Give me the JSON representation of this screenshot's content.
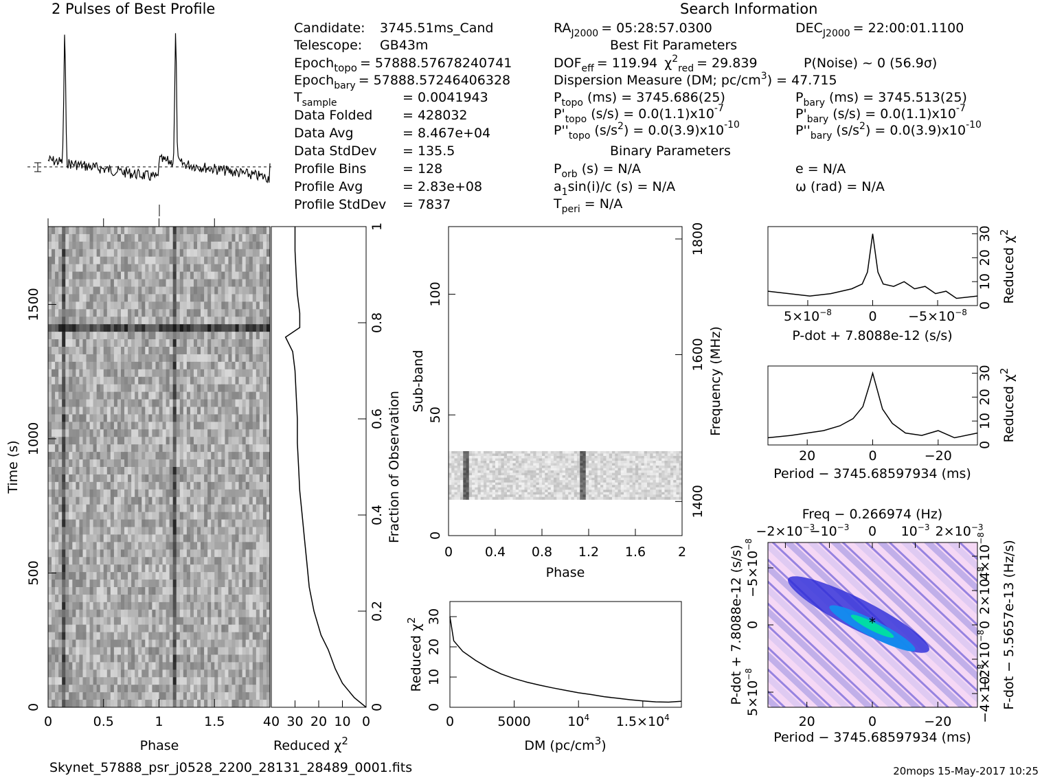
{
  "header": {
    "profile_title": "2 Pulses of Best Profile",
    "search_title": "Search Information",
    "filename": "Skynet_57888_psr_j0528_2200_28131_28489_0001.fits",
    "footer_right": "20mops 15-May-2017 10:25"
  },
  "info_left": {
    "candidate_label": "Candidate:",
    "candidate": "3745.51ms_Cand",
    "telescope_label": "Telescope:",
    "telescope": "GB43m",
    "epoch_topo_label": "Epoch",
    "epoch_topo_sub": "topo",
    "epoch_topo": "= 57888.57678240741",
    "epoch_bary_label": "Epoch",
    "epoch_bary_sub": "bary",
    "epoch_bary": "= 57888.57246406328",
    "tsample_label": "T",
    "tsample_sub": "sample",
    "tsample": "=   0.0041943",
    "data_folded_label": "Data Folded",
    "data_folded": "=   428032",
    "data_avg_label": "Data Avg",
    "data_avg": "=   8.467e+04",
    "data_std_label": "Data StdDev",
    "data_std": "=   135.5",
    "profile_bins_label": "Profile Bins",
    "profile_bins": "=   128",
    "profile_avg_label": "Profile Avg",
    "profile_avg": "=   2.83e+08",
    "profile_std_label": "Profile StdDev",
    "profile_std": "=   7837"
  },
  "info_mid": {
    "ra": "RA",
    "ra_sub": "J2000",
    "ra_val": "= 05:28:57.0300",
    "best_fit_title": "Best Fit Parameters",
    "dof": "DOF",
    "dof_sub": "eff",
    "dof_val": "= 119.94",
    "chi": "χ",
    "chi_sup": "2",
    "chi_sub": "red",
    "chi_val": "= 29.839",
    "pnoise": "P(Noise) ~ 0    (56.9σ)",
    "dm_text": "Dispersion Measure (DM; pc/cm",
    "dm_sup": "3",
    "dm_val": ") = 47.715",
    "ptopo": "P",
    "ptopo_sub": "topo",
    "ptopo_val": "(ms) =  3745.686(25)",
    "pdtopo": "P'",
    "pdtopo_sub": "topo",
    "pdtopo_val": "(s/s) = 0.0(1.1)x10",
    "pdtopo_exp": "-7",
    "pddtopo": "P''",
    "pddtopo_sub": "topo",
    "pddtopo_val": "(s/s",
    "pddtopo_val2": ") = 0.0(3.9)x10",
    "pddtopo_exp": "-10",
    "binary_title": "Binary Parameters",
    "porb": "P",
    "porb_sub": "orb",
    "porb_val": "(s) = N/A",
    "a1": "a",
    "a1_sub": "1",
    "a1_val": "sin(i)/c (s) = N/A",
    "tperi": "T",
    "tperi_sub": "peri",
    "tperi_val": "= N/A"
  },
  "info_right": {
    "dec": "DEC",
    "dec_sub": "J2000",
    "dec_val": "= 22:00:01.1100",
    "pbary": "P",
    "pbary_sub": "bary",
    "pbary_val": "(ms) =  3745.513(25)",
    "pdbary": "P'",
    "pdbary_sub": "bary",
    "pdbary_val": "(s/s) = 0.0(1.1)x10",
    "pdbary_exp": "-7",
    "pddbary": "P''",
    "pddbary_sub": "bary",
    "pddbary_val": "(s/s",
    "pddbary_val2": ") = 0.0(3.9)x10",
    "pddbary_exp": "-10",
    "e": "e = N/A",
    "omega": "ω (rad) = N/A"
  },
  "colors": {
    "ink": "#000000",
    "grid_dark": "#333333",
    "pp_low": "#f5d8f5",
    "pp_mid": "#2b2bd8",
    "pp_high": "#00e0a0"
  },
  "chart_data": [
    {
      "type": "line",
      "name": "profile",
      "title": "2 Pulses of Best Profile",
      "x_range": [
        0,
        2
      ],
      "peaks": [
        0.15,
        1.15
      ],
      "baseline": "dashed",
      "errorbar": true
    },
    {
      "type": "heatmap",
      "name": "time_phase",
      "xlabel": "Phase",
      "ylabel": "Time (s)",
      "xlim": [
        0,
        2
      ],
      "ylim": [
        0,
        1790
      ],
      "xticks": [
        "0",
        "0.5",
        "1",
        "1.5"
      ],
      "yticks": [
        "0",
        "500",
        "1000",
        "1500"
      ],
      "bright_band_time": 1410,
      "pulse_phases": [
        0.15,
        1.15
      ]
    },
    {
      "type": "line",
      "name": "reduced_chi2_vs_fraction",
      "xlabel": "Reduced χ",
      "xlabel_sup": "2",
      "ylabel": "Fraction of Observation",
      "xlim": [
        40,
        0
      ],
      "ylim": [
        0,
        1
      ],
      "xticks": [
        "40",
        "30",
        "20",
        "10",
        "0"
      ],
      "yticks": [
        "0",
        "0.2",
        "0.4",
        "0.6",
        "0.8",
        "1"
      ],
      "fraction": [
        0.0,
        0.02,
        0.05,
        0.08,
        0.12,
        0.15,
        0.2,
        0.25,
        0.3,
        0.35,
        0.4,
        0.45,
        0.5,
        0.55,
        0.6,
        0.65,
        0.7,
        0.74,
        0.77,
        0.79,
        0.82,
        0.86,
        0.9,
        0.95,
        1.0
      ],
      "chi2": [
        0,
        5,
        10,
        13,
        16,
        19,
        22,
        24,
        25,
        26,
        27,
        28,
        28.5,
        29,
        29,
        29.5,
        30,
        31,
        34,
        28,
        28,
        29,
        29.5,
        30,
        30
      ]
    },
    {
      "type": "heatmap",
      "name": "subband_phase",
      "xlabel": "Phase",
      "ylabel": "Sub-band",
      "ylabel2": "Frequency (MHz)",
      "xlim": [
        0,
        2
      ],
      "ylim": [
        0,
        128
      ],
      "xticks": [
        "0",
        "0.4",
        "0.8",
        "1.2",
        "1.6",
        "2"
      ],
      "yticks": [
        "0",
        "50",
        "100"
      ],
      "freq_ticks": [
        "1400",
        "1600",
        "1800"
      ],
      "active_subbands": [
        15,
        35
      ],
      "pulse_phases": [
        0.15,
        1.15
      ]
    },
    {
      "type": "line",
      "name": "dm_curve",
      "xlabel": "DM (pc/cm",
      "xlabel_sup": "3",
      "xlabel_end": ")",
      "ylabel": "Reduced χ",
      "ylabel_sup": "2",
      "xlim": [
        0,
        18000
      ],
      "ylim": [
        0,
        35
      ],
      "xticks": [
        "0",
        "5000",
        "10",
        "1.5×10"
      ],
      "xtick_sup": [
        "",
        "",
        "4",
        "4"
      ],
      "yticks": [
        "0",
        "10",
        "20",
        "30"
      ],
      "x": [
        0,
        300,
        1000,
        2000,
        3000,
        4000,
        5000,
        6000,
        7000,
        8000,
        9000,
        10000,
        11000,
        12000,
        13000,
        14000,
        15000,
        16000,
        17000,
        18000
      ],
      "y": [
        30,
        22,
        18.5,
        15.5,
        13,
        11,
        9.5,
        8.3,
        7.3,
        6.4,
        5.6,
        4.8,
        4.2,
        3.5,
        3.0,
        2.5,
        2.1,
        1.8,
        1.7,
        2.0
      ]
    },
    {
      "type": "line",
      "name": "pdot_curve",
      "xlabel": "P-dot + 7.8088e-12 (s/s)",
      "ylabel": "Reduced χ",
      "ylabel_sup": "2",
      "xticks": [
        "5×10",
        "0",
        "−5×10"
      ],
      "xtick_sup": [
        "−8",
        "",
        "−8"
      ],
      "yticks": [
        "0",
        "10",
        "20",
        "30"
      ],
      "ylim": [
        0,
        33
      ],
      "x": [
        -1,
        -0.8,
        -0.6,
        -0.4,
        -0.2,
        -0.1,
        -0.05,
        0,
        0.05,
        0.1,
        0.2,
        0.3,
        0.4,
        0.5,
        0.6,
        0.7,
        0.8,
        1
      ],
      "y": [
        6,
        5,
        4,
        5,
        7,
        9,
        14,
        30,
        14,
        9,
        8,
        10,
        7,
        8,
        5,
        6,
        3,
        4
      ]
    },
    {
      "type": "line",
      "name": "period_curve",
      "xlabel": "Period − 3745.68597934 (ms)",
      "ylabel": "Reduced χ",
      "ylabel_sup": "2",
      "xticks": [
        "20",
        "0",
        "−20"
      ],
      "yticks": [
        "0",
        "10",
        "20",
        "30"
      ],
      "ylim": [
        0,
        33
      ],
      "x": [
        32,
        25,
        20,
        15,
        10,
        6,
        3,
        1,
        0,
        -1,
        -3,
        -6,
        -10,
        -15,
        -20,
        -25,
        -32
      ],
      "y": [
        3,
        4,
        5,
        6,
        8,
        11,
        16,
        25,
        30,
        25,
        15,
        9,
        5,
        4,
        6,
        3,
        5
      ]
    },
    {
      "type": "heatmap",
      "name": "p_pdot_plane",
      "title": "Freq − 0.266974 (Hz)",
      "xlabel": "Period − 3745.68597934 (ms)",
      "ylabel": "P-dot + 7.8088e-12 (s/s)",
      "ylabel2": "F-dot − 5.5657e-13 (Hz/s)",
      "xticks": [
        "20",
        "0",
        "−20"
      ],
      "top_ticks": [
        "−2×10",
        "−10",
        "0",
        "10",
        "2×10"
      ],
      "top_sup": [
        "−3",
        "−3",
        "",
        "−3",
        "−3"
      ],
      "yticks": [
        "−5×10",
        "0",
        "5×10"
      ],
      "ytick_sup": [
        "−8",
        "",
        "−8"
      ],
      "right_ticks": [
        "4×10",
        "2×10",
        "0",
        "−2×10",
        "−4×10"
      ],
      "right_sup": [
        "−8",
        "−8",
        "",
        "−8",
        "−8"
      ],
      "best": [
        0,
        0
      ]
    }
  ]
}
